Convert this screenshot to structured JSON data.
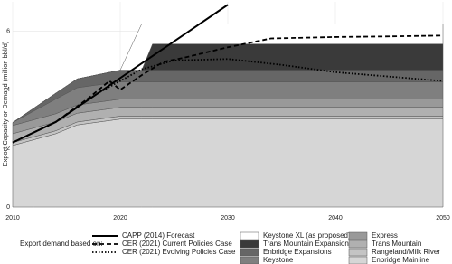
{
  "chart_data": {
    "type": "stacked-area-line",
    "y_label": "Export Capacity or Demand (million bbl/d)",
    "legend_title": "Export demand based on:",
    "grid": true,
    "xlim": [
      2010,
      2050
    ],
    "xticks": [
      2010,
      2020,
      2030,
      2040,
      2050
    ],
    "ylim": [
      0,
      7
    ],
    "yticks": [
      0,
      2,
      4,
      6
    ],
    "x": [
      2010,
      2012,
      2014,
      2016,
      2018,
      2020,
      2022,
      2023,
      2050
    ],
    "areas": [
      {
        "name": "Enbridge Mainline",
        "color": "#d6d6d6",
        "values": [
          2.1,
          2.3,
          2.5,
          2.8,
          2.9,
          3.0,
          3.0,
          3.0,
          3.0
        ]
      },
      {
        "name": "Rangeland/Milk River",
        "color": "#c4c4c4",
        "values": [
          0.1,
          0.1,
          0.1,
          0.1,
          0.1,
          0.1,
          0.1,
          0.1,
          0.1
        ]
      },
      {
        "name": "Trans Mountain",
        "color": "#b0b0b0",
        "values": [
          0.3,
          0.3,
          0.3,
          0.3,
          0.3,
          0.3,
          0.3,
          0.3,
          0.3
        ]
      },
      {
        "name": "Express",
        "color": "#999999",
        "values": [
          0.28,
          0.28,
          0.28,
          0.28,
          0.28,
          0.28,
          0.28,
          0.28,
          0.28
        ]
      },
      {
        "name": "Keystone",
        "color": "#7f7f7f",
        "values": [
          0.1,
          0.3,
          0.5,
          0.59,
          0.59,
          0.59,
          0.59,
          0.59,
          0.59
        ]
      },
      {
        "name": "Enbridge Expansions",
        "color": "#666666",
        "values": [
          0,
          0.1,
          0.2,
          0.3,
          0.35,
          0.4,
          0.4,
          0.4,
          0.4
        ]
      },
      {
        "name": "Trans Mountain Expansion",
        "color": "#3a3a3a",
        "values": [
          0,
          0,
          0,
          0,
          0,
          0,
          0,
          0.89,
          0.89
        ]
      },
      {
        "name": "Keystone XL (as proposed)",
        "color": "#ffffff",
        "values": [
          0,
          0,
          0,
          0,
          0,
          0,
          1.58,
          0.69,
          0.69
        ]
      }
    ],
    "lines": [
      {
        "name": "CAPP (2014) Forecast",
        "dash": "none",
        "width": 2,
        "color": "#000000",
        "x": [
          2010,
          2014,
          2018,
          2022,
          2026,
          2030
        ],
        "values": [
          2.2,
          2.9,
          3.9,
          4.9,
          5.9,
          6.9
        ]
      },
      {
        "name": "CER (2021) Current Policies Case",
        "dash": "5,3",
        "width": 1.8,
        "color": "#000000",
        "x": [
          2010,
          2014,
          2017,
          2019,
          2020,
          2022,
          2024,
          2026,
          2030,
          2034,
          2040,
          2045,
          2050
        ],
        "values": [
          2.2,
          2.9,
          3.7,
          4.3,
          4.0,
          4.5,
          4.95,
          5.1,
          5.45,
          5.75,
          5.8,
          5.82,
          5.85
        ]
      },
      {
        "name": "CER (2021) Evolving Policies Case",
        "dash": "1.5,2",
        "width": 1.8,
        "color": "#000000",
        "x": [
          2010,
          2014,
          2018,
          2020,
          2022,
          2025,
          2030,
          2035,
          2040,
          2045,
          2050
        ],
        "values": [
          2.2,
          2.9,
          3.9,
          4.3,
          4.7,
          5.0,
          5.05,
          4.85,
          4.6,
          4.45,
          4.3
        ]
      }
    ]
  }
}
